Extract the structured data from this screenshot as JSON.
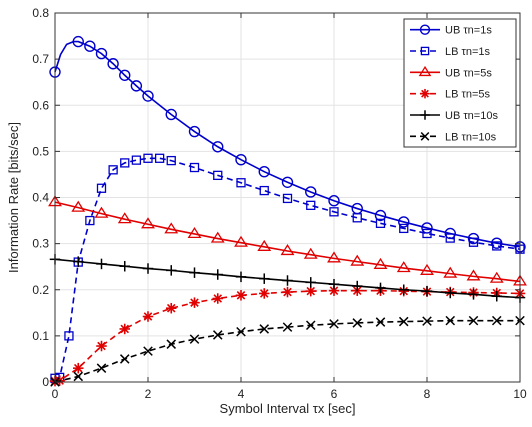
{
  "chart_data": {
    "type": "line",
    "xlabel": "Symbol Interval τx [sec]",
    "ylabel": "Information Rate [bits/sec]",
    "xlim": [
      0,
      10
    ],
    "ylim": [
      0,
      0.8
    ],
    "x_ticks": [
      0,
      2,
      4,
      6,
      8,
      10
    ],
    "y_ticks": [
      0,
      0.1,
      0.2,
      0.3,
      0.4,
      0.5,
      0.6,
      0.7,
      0.8
    ],
    "grid": true,
    "legend_position": "top-right",
    "series": [
      {
        "name": "UB τn=1s",
        "color": "#0000cc",
        "line_style": "solid",
        "marker": "circle",
        "x": [
          0.0,
          0.12,
          0.25,
          0.4,
          0.5,
          0.75,
          1.0,
          1.25,
          1.5,
          1.75,
          2.0,
          2.5,
          3.0,
          3.5,
          4.0,
          4.5,
          5.0,
          5.5,
          6.0,
          6.5,
          7.0,
          7.5,
          8.0,
          8.5,
          9.0,
          9.5,
          10.0
        ],
        "y": [
          0.672,
          0.71,
          0.732,
          0.738,
          0.738,
          0.728,
          0.712,
          0.69,
          0.665,
          0.642,
          0.62,
          0.58,
          0.543,
          0.51,
          0.482,
          0.456,
          0.433,
          0.412,
          0.393,
          0.376,
          0.361,
          0.347,
          0.334,
          0.322,
          0.311,
          0.301,
          0.293
        ]
      },
      {
        "name": "LB τn=1s",
        "color": "#0000cc",
        "line_style": "dashed",
        "marker": "square",
        "x": [
          0.0,
          0.1,
          0.3,
          0.5,
          0.75,
          1.0,
          1.25,
          1.5,
          1.75,
          2.0,
          2.25,
          2.5,
          3.0,
          3.5,
          4.0,
          4.5,
          5.0,
          5.5,
          6.0,
          6.5,
          7.0,
          7.5,
          8.0,
          8.5,
          9.0,
          9.5,
          10.0
        ],
        "y": [
          0.008,
          0.01,
          0.1,
          0.26,
          0.35,
          0.42,
          0.46,
          0.475,
          0.481,
          0.485,
          0.485,
          0.48,
          0.465,
          0.448,
          0.432,
          0.415,
          0.398,
          0.383,
          0.369,
          0.356,
          0.344,
          0.333,
          0.322,
          0.312,
          0.303,
          0.295,
          0.288
        ]
      },
      {
        "name": "UB τn=5s",
        "color": "#e00000",
        "line_style": "solid",
        "marker": "triangle",
        "x": [
          0.0,
          0.5,
          1.0,
          1.5,
          2.0,
          2.5,
          3.0,
          3.5,
          4.0,
          4.5,
          5.0,
          5.5,
          6.0,
          6.5,
          7.0,
          7.5,
          8.0,
          8.5,
          9.0,
          9.5,
          10.0
        ],
        "y": [
          0.39,
          0.378,
          0.365,
          0.353,
          0.342,
          0.331,
          0.321,
          0.311,
          0.302,
          0.293,
          0.284,
          0.276,
          0.268,
          0.261,
          0.254,
          0.247,
          0.241,
          0.235,
          0.229,
          0.224,
          0.218
        ]
      },
      {
        "name": "LB τn=5s",
        "color": "#e00000",
        "line_style": "dashed",
        "marker": "asterisk",
        "x": [
          0.0,
          0.1,
          0.5,
          1.0,
          1.5,
          2.0,
          2.5,
          3.0,
          3.5,
          4.0,
          4.5,
          5.0,
          5.5,
          6.0,
          6.5,
          7.0,
          7.5,
          8.0,
          8.5,
          9.0,
          9.5,
          10.0
        ],
        "y": [
          0.002,
          0.003,
          0.03,
          0.078,
          0.115,
          0.142,
          0.16,
          0.172,
          0.181,
          0.188,
          0.192,
          0.195,
          0.197,
          0.198,
          0.198,
          0.198,
          0.197,
          0.196,
          0.195,
          0.194,
          0.193,
          0.192
        ]
      },
      {
        "name": "UB τn=10s",
        "color": "#000000",
        "line_style": "solid",
        "marker": "plus",
        "x": [
          0.0,
          0.5,
          1.0,
          1.5,
          2.0,
          2.5,
          3.0,
          3.5,
          4.0,
          4.5,
          5.0,
          5.5,
          6.0,
          6.5,
          7.0,
          7.5,
          8.0,
          8.5,
          9.0,
          9.5,
          10.0
        ],
        "y": [
          0.266,
          0.261,
          0.256,
          0.251,
          0.246,
          0.242,
          0.237,
          0.233,
          0.228,
          0.224,
          0.22,
          0.216,
          0.212,
          0.208,
          0.204,
          0.2,
          0.197,
          0.193,
          0.19,
          0.186,
          0.183
        ]
      },
      {
        "name": "LB τn=10s",
        "color": "#000000",
        "line_style": "dashed",
        "marker": "x",
        "x": [
          0.0,
          0.5,
          1.0,
          1.5,
          2.0,
          2.5,
          3.0,
          3.5,
          4.0,
          4.5,
          5.0,
          5.5,
          6.0,
          6.5,
          7.0,
          7.5,
          8.0,
          8.5,
          9.0,
          9.5,
          10.0
        ],
        "y": [
          0.0,
          0.012,
          0.03,
          0.05,
          0.067,
          0.082,
          0.093,
          0.102,
          0.109,
          0.115,
          0.119,
          0.123,
          0.126,
          0.128,
          0.13,
          0.131,
          0.132,
          0.133,
          0.133,
          0.133,
          0.133
        ]
      }
    ]
  }
}
